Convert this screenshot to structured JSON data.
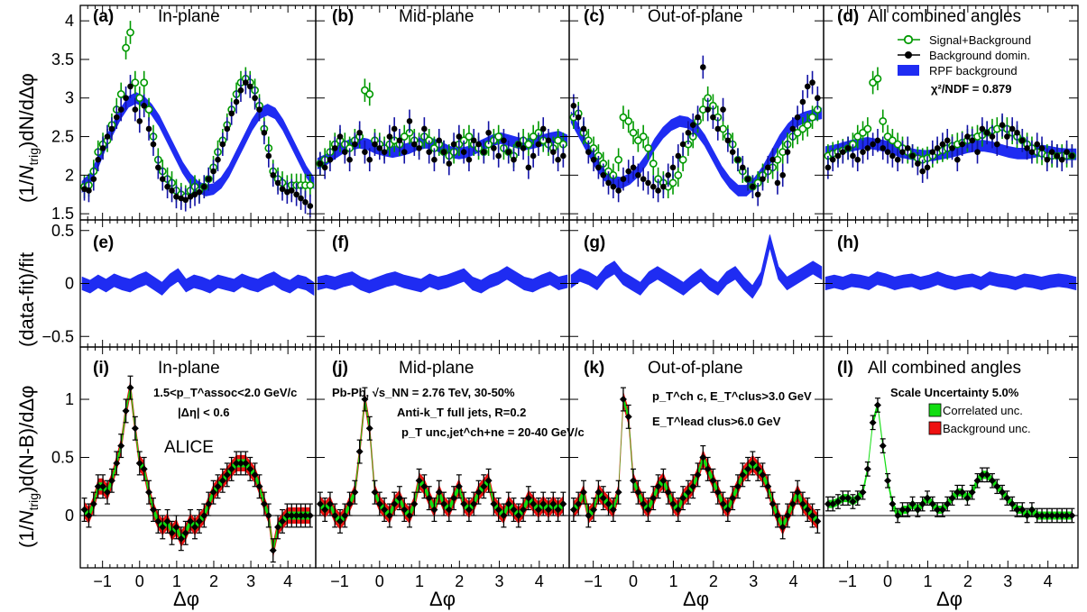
{
  "chart_data": {
    "type": "scatter",
    "xlabel": "Δφ",
    "x_ticks": [
      "−1",
      "0",
      "1",
      "2",
      "3",
      "4"
    ],
    "xlim": [
      -1.6,
      4.75
    ],
    "columns": [
      {
        "letter": "(a)",
        "title": "In-plane"
      },
      {
        "letter": "(b)",
        "title": "Mid-plane"
      },
      {
        "letter": "(c)",
        "title": "Out-of-plane"
      },
      {
        "letter": "(d)",
        "title": "All combined angles"
      }
    ],
    "rows": [
      {
        "ylabel_pre": "(1/",
        "ylabel_n": "N",
        "ylabel_sub": "trig",
        "ylabel_post": ")dN/dΔφ",
        "ylim": [
          1.42,
          4.2
        ],
        "y_ticks": [
          "1.5",
          "2",
          "2.5",
          "3",
          "3.5",
          "4"
        ],
        "y_tick_values": [
          1.5,
          2,
          2.5,
          3,
          3.5,
          4
        ],
        "letters": [
          "(a)",
          "(b)",
          "(c)",
          "(d)"
        ]
      },
      {
        "ylabel": "(data-fit)/fit",
        "ylim": [
          -0.6,
          0.6
        ],
        "y_ticks": [
          "−0.5",
          "0",
          "0.5"
        ],
        "y_tick_values": [
          -0.5,
          0,
          0.5
        ],
        "letters": [
          "(e)",
          "(f)",
          "(g)",
          "(h)"
        ]
      },
      {
        "ylabel_pre": "(1/",
        "ylabel_n": "N",
        "ylabel_sub": "trig",
        "ylabel_post": ")d(N-B)/dΔφ",
        "ylim": [
          -0.45,
          1.45
        ],
        "y_ticks": [
          "0",
          "0.5",
          "1"
        ],
        "y_tick_values": [
          0,
          0.5,
          1
        ],
        "letters": [
          "(i)",
          "(j)",
          "(k)",
          "(l)"
        ]
      }
    ],
    "legend": {
      "placement": "top-right of panel (d)",
      "entries": [
        "Signal+Background",
        "Background domin.",
        "RPF background"
      ],
      "chi2": "χ²/NDF = 0.879"
    },
    "legend2": {
      "title": "Scale Uncertainty 5.0%",
      "entries": [
        "Correlated unc.",
        "Background unc."
      ]
    },
    "annotations": {
      "kin_assoc": "1.5<p_T^assoc<2.0 GeV/c",
      "deta": "|Δη| < 0.6",
      "alice": "ALICE",
      "system": "Pb-Pb, √s_NN = 2.76 TeV, 30-50%",
      "jets": "Anti-k_T full jets, R=0.2",
      "jetpt": "p_T unc,jet^ch+ne = 20-40 GeV/c",
      "trig1": "p_T^ch c,  E_T^clus>3.0 GeV",
      "trig2": "E_T^lead clus>6.0 GeV"
    },
    "x": [
      -1.49,
      -1.37,
      -1.24,
      -1.12,
      -0.99,
      -0.87,
      -0.75,
      -0.62,
      -0.5,
      -0.37,
      -0.25,
      -0.12,
      0.0,
      0.12,
      0.25,
      0.37,
      0.5,
      0.62,
      0.75,
      0.87,
      0.99,
      1.12,
      1.24,
      1.37,
      1.49,
      1.61,
      1.74,
      1.86,
      1.99,
      2.11,
      2.24,
      2.36,
      2.48,
      2.61,
      2.73,
      2.86,
      2.98,
      3.11,
      3.23,
      3.36,
      3.48,
      3.6,
      3.73,
      3.85,
      3.98,
      4.1,
      4.23,
      4.35,
      4.47,
      4.6
    ],
    "series": [
      {
        "name": "Signal+Background",
        "panel": "(a)",
        "values": [
          1.85,
          1.87,
          2.05,
          2.3,
          2.4,
          2.45,
          2.65,
          2.85,
          3.05,
          3.65,
          3.85,
          3.2,
          3.0,
          3.2,
          2.85,
          2.5,
          2.2,
          2.05,
          1.95,
          1.9,
          1.8,
          1.75,
          1.72,
          1.8,
          1.85,
          1.8,
          1.85,
          1.95,
          2.1,
          2.3,
          2.45,
          2.65,
          2.85,
          3.05,
          3.2,
          3.25,
          3.2,
          3.1,
          2.9,
          2.6,
          2.35,
          2.05,
          1.95,
          1.9,
          1.85,
          1.87,
          1.87,
          1.87,
          1.87,
          1.87
        ]
      },
      {
        "name": "Background domin.",
        "panel": "(a)",
        "values": [
          1.82,
          1.8,
          1.95,
          2.2,
          2.35,
          2.5,
          2.6,
          2.75,
          2.85,
          3.0,
          3.15,
          2.85,
          2.7,
          2.9,
          2.6,
          2.4,
          2.1,
          1.95,
          1.85,
          1.8,
          1.72,
          1.7,
          1.68,
          1.72,
          1.75,
          1.78,
          1.85,
          1.95,
          2.05,
          2.2,
          2.4,
          2.6,
          2.8,
          2.95,
          3.1,
          3.2,
          3.15,
          3.0,
          2.85,
          2.55,
          2.25,
          2.0,
          1.9,
          1.82,
          1.78,
          1.8,
          1.75,
          1.7,
          1.65,
          1.6
        ]
      },
      {
        "name": "Signal+Background",
        "panel": "(b)",
        "values": [
          2.15,
          2.2,
          2.3,
          2.4,
          2.45,
          2.4,
          2.35,
          2.45,
          2.5,
          3.1,
          3.05,
          2.45,
          2.4,
          2.35,
          2.4,
          2.45,
          2.4,
          2.5,
          2.55,
          2.45,
          2.4,
          2.5,
          2.45,
          2.35,
          2.4,
          2.3,
          2.25,
          2.3,
          2.4,
          2.45,
          2.5,
          2.4,
          2.35,
          2.3,
          2.4,
          2.45,
          2.5,
          2.35,
          2.3,
          2.25,
          2.4,
          2.45,
          2.4,
          2.5,
          2.55,
          2.45,
          2.4,
          2.35,
          2.45,
          2.4
        ]
      },
      {
        "name": "Background domin.",
        "panel": "(b)",
        "values": [
          2.15,
          2.1,
          2.2,
          2.35,
          2.5,
          2.3,
          2.2,
          2.4,
          2.55,
          2.3,
          2.2,
          2.4,
          2.35,
          2.3,
          2.5,
          2.6,
          2.45,
          2.3,
          2.7,
          2.4,
          2.35,
          2.6,
          2.3,
          2.2,
          2.45,
          2.3,
          2.15,
          2.4,
          2.5,
          2.3,
          2.2,
          2.45,
          2.4,
          2.3,
          2.55,
          2.35,
          2.25,
          2.45,
          2.3,
          2.2,
          2.4,
          2.35,
          2.1,
          2.25,
          2.4,
          2.6,
          2.45,
          2.3,
          2.2,
          2.25
        ]
      },
      {
        "name": "Signal+Background",
        "panel": "(c)",
        "values": [
          2.75,
          2.8,
          2.55,
          2.45,
          2.35,
          2.25,
          2.15,
          2.05,
          2.0,
          2.2,
          2.75,
          2.7,
          2.55,
          2.45,
          2.5,
          2.35,
          2.15,
          1.95,
          1.9,
          1.85,
          1.9,
          2.0,
          2.2,
          2.4,
          2.5,
          2.7,
          2.85,
          3.0,
          2.9,
          2.75,
          2.6,
          2.5,
          2.4,
          2.2,
          2.05,
          1.95,
          1.85,
          1.9,
          2.0,
          2.05,
          2.1,
          2.2,
          2.3,
          2.4,
          2.5,
          2.55,
          2.6,
          2.65,
          2.75,
          2.85
        ]
      },
      {
        "name": "Background domin.",
        "panel": "(c)",
        "values": [
          2.9,
          2.75,
          2.6,
          2.3,
          2.2,
          2.1,
          2.0,
          1.9,
          1.85,
          1.8,
          1.95,
          2.05,
          2.1,
          2.0,
          1.95,
          1.9,
          1.85,
          1.8,
          1.85,
          2.0,
          2.1,
          2.25,
          2.4,
          2.55,
          2.65,
          2.75,
          3.4,
          2.85,
          2.75,
          2.6,
          2.85,
          2.45,
          2.3,
          2.2,
          2.1,
          1.95,
          1.85,
          1.75,
          1.95,
          2.1,
          2.2,
          1.9,
          2.0,
          2.3,
          2.6,
          2.75,
          2.95,
          3.15,
          3.2,
          3.0
        ]
      },
      {
        "name": "Signal+Background",
        "panel": "(d)",
        "values": [
          2.25,
          2.28,
          2.3,
          2.32,
          2.35,
          2.4,
          2.5,
          2.55,
          2.6,
          3.2,
          3.25,
          2.7,
          2.5,
          2.45,
          2.4,
          2.35,
          2.3,
          2.25,
          2.22,
          2.2,
          2.22,
          2.25,
          2.3,
          2.32,
          2.35,
          2.38,
          2.4,
          2.42,
          2.45,
          2.48,
          2.5,
          2.52,
          2.55,
          2.58,
          2.6,
          2.62,
          2.6,
          2.55,
          2.5,
          2.45,
          2.4,
          2.35,
          2.3,
          2.28,
          2.25,
          2.25,
          2.25,
          2.25,
          2.25,
          2.25
        ]
      },
      {
        "name": "Background domin.",
        "panel": "(d)",
        "values": [
          2.1,
          2.2,
          2.25,
          2.3,
          2.35,
          2.25,
          2.2,
          2.3,
          2.35,
          2.4,
          2.45,
          2.35,
          2.3,
          2.25,
          2.2,
          2.3,
          2.35,
          2.25,
          2.15,
          2.05,
          2.1,
          2.3,
          2.35,
          2.4,
          2.45,
          2.35,
          2.2,
          2.4,
          2.5,
          2.45,
          2.3,
          2.6,
          2.55,
          2.5,
          2.4,
          2.65,
          2.5,
          2.6,
          2.55,
          2.45,
          2.35,
          2.3,
          2.4,
          2.35,
          2.2,
          2.3,
          2.25,
          2.2,
          2.3,
          2.25
        ]
      },
      {
        "name": "RPF background",
        "panel": "(a)",
        "values": [
          1.85,
          1.95,
          2.15,
          2.4,
          2.6,
          2.8,
          2.95,
          3.0,
          2.95,
          2.85,
          2.7,
          2.5,
          2.3,
          2.1,
          1.95,
          1.85,
          1.8,
          1.82,
          1.9,
          2.05,
          2.25,
          2.45,
          2.65,
          2.8,
          2.85,
          2.8,
          2.65,
          2.45,
          2.25,
          2.05,
          1.9
        ]
      },
      {
        "name": "RPF background",
        "panel": "(b)",
        "values": [
          2.15,
          2.2,
          2.28,
          2.35,
          2.4,
          2.42,
          2.4,
          2.35,
          2.32,
          2.3,
          2.32,
          2.35,
          2.4,
          2.42,
          2.4,
          2.35,
          2.3,
          2.28,
          2.3,
          2.35,
          2.4,
          2.45,
          2.48,
          2.45,
          2.42,
          2.4,
          2.42,
          2.45,
          2.48,
          2.5,
          2.45
        ]
      },
      {
        "name": "RPF background",
        "panel": "(c)",
        "values": [
          2.75,
          2.55,
          2.35,
          2.15,
          2.0,
          1.92,
          1.9,
          1.95,
          2.05,
          2.2,
          2.4,
          2.55,
          2.65,
          2.7,
          2.68,
          2.6,
          2.45,
          2.25,
          2.05,
          1.9,
          1.8,
          1.8,
          1.9,
          2.05,
          2.25,
          2.45,
          2.6,
          2.7,
          2.75,
          2.78,
          2.8
        ]
      },
      {
        "name": "RPF background",
        "panel": "(d)",
        "values": [
          2.3,
          2.32,
          2.35,
          2.38,
          2.4,
          2.42,
          2.4,
          2.38,
          2.35,
          2.3,
          2.28,
          2.26,
          2.25,
          2.26,
          2.28,
          2.3,
          2.33,
          2.36,
          2.38,
          2.38,
          2.36,
          2.33,
          2.3,
          2.28,
          2.28,
          2.3,
          2.32,
          2.3,
          2.28,
          2.27,
          2.27
        ]
      },
      {
        "name": "(data-fit)/fit",
        "panel": "(e)",
        "values": [
          0.0,
          -0.03,
          0.02,
          -0.02,
          0.03,
          0.0,
          -0.02,
          0.02,
          0.05,
          0.0,
          -0.05,
          0.03,
          0.08,
          -0.02,
          0.02,
          0.0,
          -0.03,
          0.02,
          0.0,
          -0.02,
          0.03,
          0.0,
          -0.02,
          0.02,
          0.05,
          0.0,
          -0.03,
          0.02,
          0.0,
          -0.05
        ]
      },
      {
        "name": "(data-fit)/fit",
        "panel": "(f)",
        "values": [
          0.0,
          0.02,
          0.0,
          0.03,
          0.05,
          0.0,
          -0.03,
          0.0,
          0.03,
          0.05,
          0.02,
          0.0,
          -0.02,
          0.03,
          0.0,
          0.02,
          0.05,
          0.08,
          0.0,
          -0.03,
          0.02,
          0.05,
          0.1,
          0.05,
          0.0,
          -0.02,
          0.02,
          0.05,
          0.0,
          0.02
        ]
      },
      {
        "name": "(data-fit)/fit",
        "panel": "(g)",
        "values": [
          0.02,
          0.08,
          0.05,
          0.0,
          0.1,
          0.15,
          0.05,
          0.0,
          -0.05,
          0.05,
          0.1,
          0.05,
          0.0,
          -0.05,
          0.02,
          0.08,
          0.0,
          -0.05,
          0.05,
          0.1,
          0.0,
          -0.08,
          0.05,
          0.4,
          0.1,
          0.0,
          0.05,
          0.1,
          0.15,
          0.1
        ]
      },
      {
        "name": "(data-fit)/fit",
        "panel": "(h)",
        "values": [
          0.0,
          0.02,
          0.0,
          0.03,
          0.02,
          0.0,
          0.05,
          0.03,
          0.0,
          0.02,
          0.03,
          0.0,
          0.02,
          0.05,
          0.02,
          0.0,
          0.02,
          0.03,
          0.0,
          0.05,
          0.03,
          0.02,
          0.0,
          0.03,
          0.02,
          0.0,
          0.02,
          0.03,
          0.02,
          0.0
        ]
      },
      {
        "name": "N-B",
        "panel": "(i)",
        "values": [
          0.05,
          0.0,
          0.1,
          0.25,
          0.25,
          0.2,
          0.3,
          0.45,
          0.6,
          0.9,
          1.1,
          0.75,
          0.45,
          0.4,
          0.2,
          0.05,
          -0.05,
          -0.1,
          -0.05,
          -0.15,
          -0.1,
          -0.2,
          -0.15,
          -0.05,
          -0.1,
          -0.05,
          0.0,
          0.1,
          0.2,
          0.25,
          0.3,
          0.35,
          0.4,
          0.45,
          0.45,
          0.45,
          0.4,
          0.35,
          0.25,
          0.1,
          0.0,
          -0.3,
          -0.1,
          -0.05,
          0.0,
          0.0,
          0.0,
          0.0,
          0.0,
          0.0
        ]
      },
      {
        "name": "N-B",
        "panel": "(j)",
        "values": [
          0.1,
          0.05,
          0.1,
          0.0,
          -0.05,
          0.0,
          0.1,
          0.2,
          0.55,
          1.0,
          0.75,
          0.2,
          0.1,
          0.05,
          0.0,
          0.1,
          0.15,
          0.05,
          0.0,
          0.1,
          0.3,
          0.25,
          0.15,
          0.05,
          0.2,
          0.1,
          0.05,
          0.15,
          0.25,
          0.1,
          0.05,
          0.1,
          0.2,
          0.25,
          0.3,
          0.1,
          0.05,
          0.0,
          0.1,
          0.05,
          0.0,
          0.05,
          0.15,
          0.1,
          0.05,
          0.1,
          0.05,
          0.1,
          0.05,
          0.1
        ]
      },
      {
        "name": "N-B",
        "panel": "(k)",
        "values": [
          0.05,
          0.1,
          0.2,
          0.0,
          0.05,
          0.2,
          0.15,
          0.1,
          0.05,
          0.2,
          1.0,
          0.85,
          0.3,
          0.2,
          0.1,
          0.05,
          0.15,
          0.25,
          0.3,
          0.2,
          0.1,
          0.05,
          0.15,
          0.2,
          0.25,
          0.35,
          0.5,
          0.4,
          0.3,
          0.2,
          0.1,
          0.05,
          0.15,
          0.25,
          0.35,
          0.4,
          0.45,
          0.4,
          0.35,
          0.25,
          0.1,
          0.0,
          -0.1,
          0.0,
          0.1,
          0.2,
          0.1,
          0.05,
          0.0,
          -0.05
        ]
      },
      {
        "name": "N-B",
        "panel": "(l)",
        "values": [
          0.1,
          0.1,
          0.12,
          0.15,
          0.15,
          0.12,
          0.15,
          0.2,
          0.4,
          0.8,
          0.95,
          0.6,
          0.3,
          0.1,
          0.0,
          0.05,
          0.05,
          0.1,
          0.05,
          0.1,
          0.15,
          0.1,
          0.05,
          0.05,
          0.1,
          0.15,
          0.2,
          0.2,
          0.15,
          0.2,
          0.3,
          0.35,
          0.35,
          0.3,
          0.25,
          0.2,
          0.15,
          0.1,
          0.05,
          0.05,
          0.0,
          0.05,
          0.0,
          0.0,
          0.0,
          0.0,
          0.0,
          0.0,
          0.0,
          0.0
        ]
      }
    ],
    "colors": {
      "signal": "#009900",
      "background": "#000000",
      "rpf": "#1f2cf2",
      "correlated": "#11dd11",
      "background_unc": "#ee1111",
      "errbar_dark": "#1212a6",
      "frame": "#000000"
    }
  }
}
